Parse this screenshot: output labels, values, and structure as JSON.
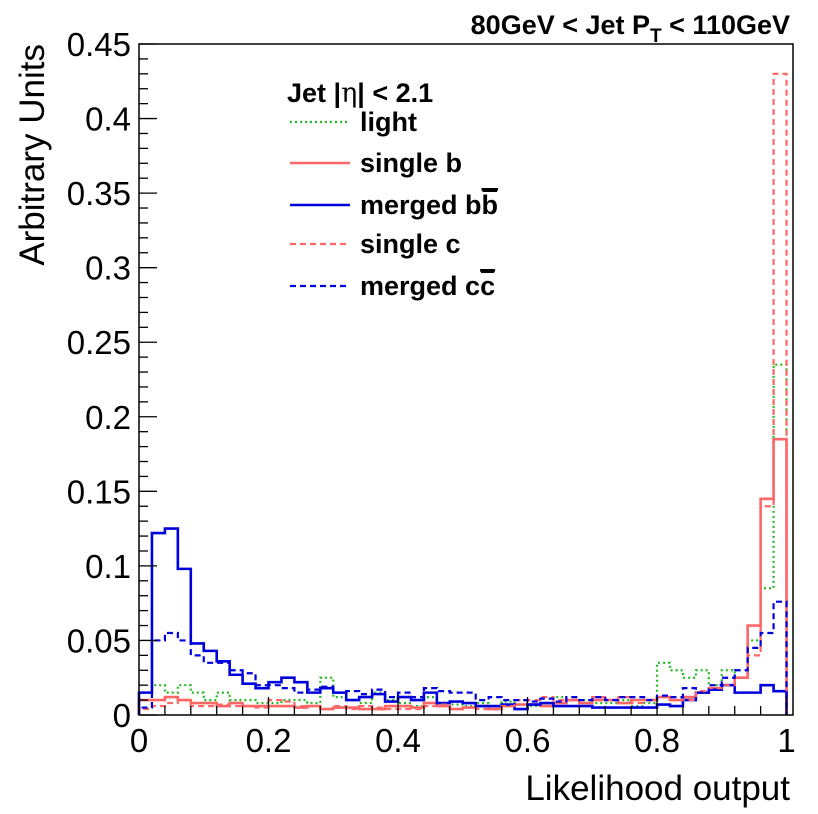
{
  "chart_data": {
    "type": "histogram",
    "title": {
      "prefix": "80GeV < Jet P",
      "sub": "T",
      "suffix": " < 110GeV"
    },
    "xlabel": "Likelihood output",
    "ylabel": "Arbitrary Units",
    "xlim": [
      0,
      1.01
    ],
    "ylim": [
      0,
      0.45
    ],
    "x_ticks": [
      {
        "value": 0,
        "label": "0"
      },
      {
        "value": 0.2,
        "label": "0.2"
      },
      {
        "value": 0.4,
        "label": "0.4"
      },
      {
        "value": 0.6,
        "label": "0.6"
      },
      {
        "value": 0.8,
        "label": "0.8"
      },
      {
        "value": 1,
        "label": "1"
      }
    ],
    "y_ticks": [
      {
        "value": 0,
        "label": "0"
      },
      {
        "value": 0.05,
        "label": "0.05"
      },
      {
        "value": 0.1,
        "label": "0.1"
      },
      {
        "value": 0.15,
        "label": "0.15"
      },
      {
        "value": 0.2,
        "label": "0.2"
      },
      {
        "value": 0.25,
        "label": "0.25"
      },
      {
        "value": 0.3,
        "label": "0.3"
      },
      {
        "value": 0.35,
        "label": "0.35"
      },
      {
        "value": 0.4,
        "label": "0.4"
      },
      {
        "value": 0.45,
        "label": "0.45"
      }
    ],
    "bins": {
      "start": 0,
      "width": 0.02,
      "count": 50
    },
    "legend": {
      "header": {
        "prefix": "Jet |",
        "eta": "η",
        "suffix": "| < 2.1"
      },
      "position": "top-center",
      "entries": [
        {
          "text": "light",
          "bar": ""
        },
        {
          "text": "single b",
          "bar": ""
        },
        {
          "text": "merged b",
          "bar": "b"
        },
        {
          "text": "single c",
          "bar": ""
        },
        {
          "text": "merged c",
          "bar": "c"
        }
      ]
    },
    "series": [
      {
        "name": "light",
        "color": "#22bb22",
        "dash": "dotted",
        "values": [
          0.01,
          0.02,
          0.015,
          0.02,
          0.015,
          0.01,
          0.015,
          0.01,
          0.01,
          0.008,
          0.008,
          0.01,
          0.01,
          0.008,
          0.025,
          0.012,
          0.01,
          0.008,
          0.015,
          0.01,
          0.008,
          0.006,
          0.012,
          0.006,
          0.007,
          0.006,
          0.008,
          0.006,
          0.009,
          0.007,
          0.006,
          0.008,
          0.012,
          0.01,
          0.01,
          0.008,
          0.008,
          0.01,
          0.006,
          0.008,
          0.035,
          0.03,
          0.025,
          0.03,
          0.02,
          0.03,
          0.025,
          0.05,
          0.085,
          0.235
        ]
      },
      {
        "name": "single b",
        "color": "#ff6666",
        "dash": "solid",
        "values": [
          0.01,
          0.01,
          0.012,
          0.01,
          0.008,
          0.008,
          0.006,
          0.008,
          0.006,
          0.006,
          0.006,
          0.006,
          0.005,
          0.006,
          0.004,
          0.005,
          0.005,
          0.004,
          0.004,
          0.006,
          0.006,
          0.005,
          0.008,
          0.006,
          0.004,
          0.005,
          0.006,
          0.004,
          0.006,
          0.007,
          0.007,
          0.006,
          0.008,
          0.01,
          0.008,
          0.01,
          0.01,
          0.008,
          0.01,
          0.01,
          0.012,
          0.01,
          0.012,
          0.015,
          0.018,
          0.02,
          0.025,
          0.06,
          0.145,
          0.185
        ]
      },
      {
        "name": "merged bb",
        "color": "#0000dd",
        "dash": "solid",
        "values": [
          0.015,
          0.122,
          0.125,
          0.098,
          0.048,
          0.043,
          0.036,
          0.027,
          0.021,
          0.018,
          0.022,
          0.025,
          0.022,
          0.015,
          0.018,
          0.015,
          0.01,
          0.012,
          0.014,
          0.009,
          0.012,
          0.01,
          0.015,
          0.008,
          0.009,
          0.008,
          0.006,
          0.006,
          0.007,
          0.004,
          0.007,
          0.008,
          0.006,
          0.006,
          0.006,
          0.005,
          0.005,
          0.005,
          0.005,
          0.005,
          0.007,
          0.006,
          0.01,
          0.015,
          0.017,
          0.02,
          0.015,
          0.015,
          0.02,
          0.016
        ]
      },
      {
        "name": "single c",
        "color": "#ff6666",
        "dash": "dashed",
        "values": [
          0.004,
          0.006,
          0.008,
          0.01,
          0.006,
          0.006,
          0.007,
          0.006,
          0.006,
          0.005,
          0.01,
          0.009,
          0.006,
          0.006,
          0.004,
          0.006,
          0.004,
          0.006,
          0.005,
          0.004,
          0.004,
          0.004,
          0.006,
          0.007,
          0.004,
          0.005,
          0.004,
          0.004,
          0.006,
          0.01,
          0.01,
          0.012,
          0.01,
          0.01,
          0.008,
          0.012,
          0.01,
          0.012,
          0.008,
          0.01,
          0.012,
          0.01,
          0.01,
          0.016,
          0.018,
          0.02,
          0.025,
          0.04,
          0.14,
          0.43
        ]
      },
      {
        "name": "merged cc",
        "color": "#0000dd",
        "dash": "dashed",
        "values": [
          0.005,
          0.05,
          0.055,
          0.05,
          0.04,
          0.035,
          0.035,
          0.03,
          0.028,
          0.02,
          0.02,
          0.018,
          0.015,
          0.017,
          0.019,
          0.015,
          0.016,
          0.014,
          0.017,
          0.012,
          0.015,
          0.012,
          0.018,
          0.016,
          0.015,
          0.015,
          0.01,
          0.012,
          0.01,
          0.01,
          0.009,
          0.011,
          0.009,
          0.012,
          0.01,
          0.012,
          0.01,
          0.012,
          0.012,
          0.01,
          0.013,
          0.012,
          0.018,
          0.015,
          0.02,
          0.025,
          0.03,
          0.045,
          0.055,
          0.076
        ]
      }
    ]
  }
}
